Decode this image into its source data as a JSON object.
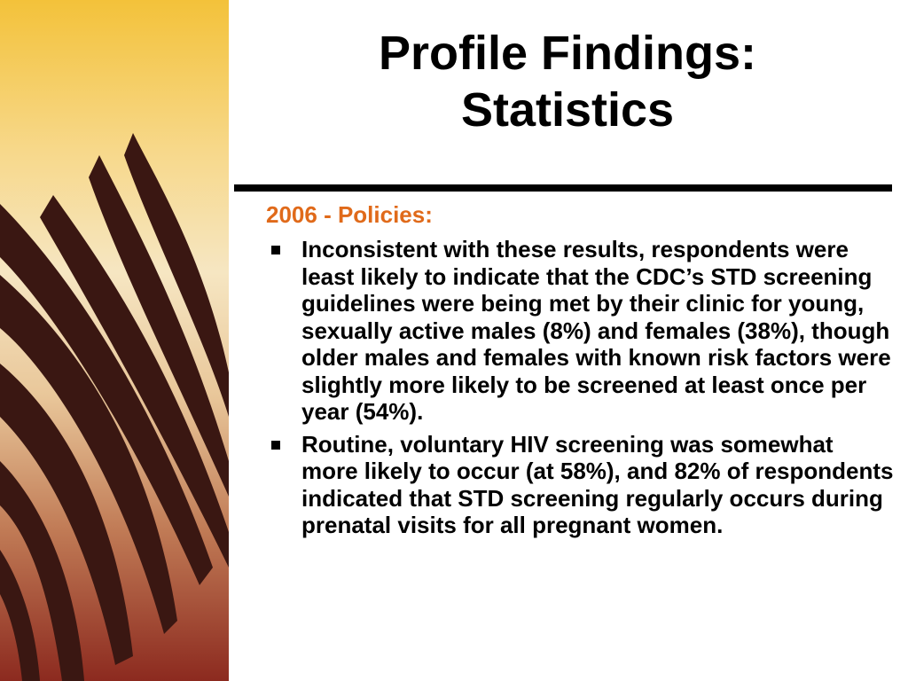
{
  "slide": {
    "title_lines": [
      "Profile Findings:",
      "Statistics"
    ],
    "subheading": "2006 - Policies:",
    "bullets": [
      "Inconsistent with these results, respondents were least likely to indicate that the CDC’s STD screening guidelines were being met by their clinic for young, sexually active males (8%) and females (38%), though older males and females with known risk factors were slightly more likely to be screened at least once per year (54%).",
      "Routine, voluntary HIV screening was somewhat more likely to occur (at 58%), and 82% of respondents indicated that STD screening regularly occurs during prenatal visits for all pregnant women."
    ]
  },
  "colors": {
    "subheading": "#e06a1a",
    "text": "#000000",
    "feather": "#3a1712"
  }
}
